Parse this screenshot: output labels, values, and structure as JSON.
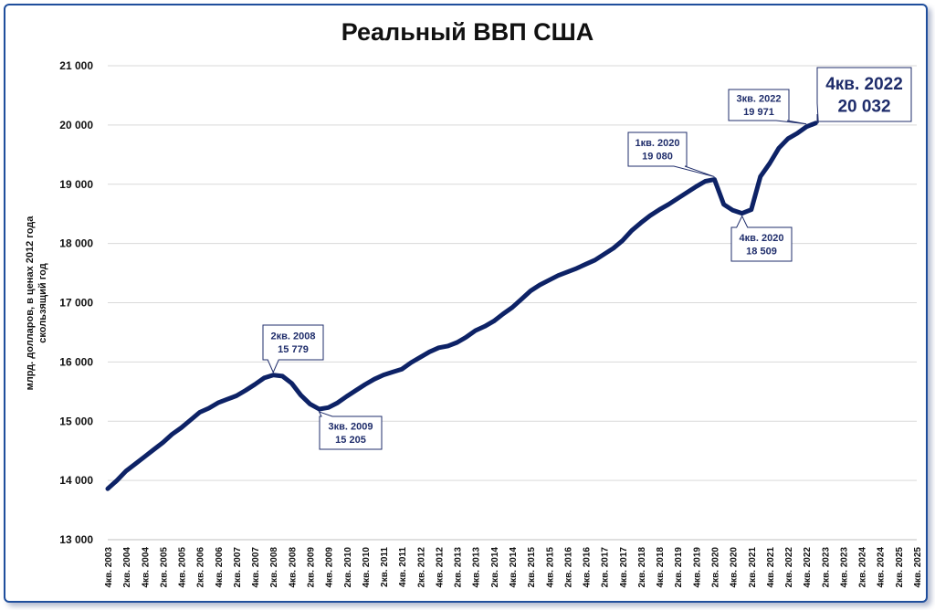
{
  "chart_data": {
    "type": "line",
    "title": "Реальный ВВП США",
    "ylabel_line1": "млрд. долларов, в ценах 2012 года",
    "ylabel_line2": "скользящий год",
    "ylim": [
      13000,
      21000
    ],
    "y_ticks": [
      "13 000",
      "14 000",
      "15 000",
      "16 000",
      "17 000",
      "18 000",
      "19 000",
      "20 000",
      "21 000"
    ],
    "y_tick_values": [
      13000,
      14000,
      15000,
      16000,
      17000,
      18000,
      19000,
      20000,
      21000
    ],
    "grid": true,
    "line_color": "#0d2266",
    "x_tick_labels": [
      "4кв. 2003",
      "2кв. 2004",
      "4кв. 2004",
      "2кв. 2005",
      "4кв. 2005",
      "2кв. 2006",
      "4кв. 2006",
      "2кв. 2007",
      "4кв. 2007",
      "2кв. 2008",
      "4кв. 2008",
      "2кв. 2009",
      "4кв. 2009",
      "2кв. 2010",
      "4кв. 2010",
      "2кв. 2011",
      "4кв. 2011",
      "2кв. 2012",
      "4кв. 2012",
      "2кв. 2013",
      "4кв. 2013",
      "2кв. 2014",
      "4кв. 2014",
      "2кв. 2015",
      "4кв. 2015",
      "2кв. 2016",
      "4кв. 2016",
      "2кв. 2017",
      "4кв. 2017",
      "2кв. 2018",
      "4кв. 2018",
      "2кв. 2019",
      "4кв. 2019",
      "2кв. 2020",
      "4кв. 2020",
      "2кв. 2021",
      "4кв. 2021",
      "2кв. 2022",
      "4кв. 2022",
      "2кв. 2023",
      "4кв. 2023",
      "2кв. 2024",
      "4кв. 2024",
      "2кв. 2025",
      "4кв. 2025"
    ],
    "series": [
      {
        "values": [
          13860,
          14000,
          14160,
          14280,
          14400,
          14520,
          14640,
          14780,
          14890,
          15020,
          15150,
          15220,
          15310,
          15370,
          15430,
          15520,
          15620,
          15730,
          15779,
          15760,
          15640,
          15440,
          15290,
          15205,
          15230,
          15310,
          15420,
          15520,
          15620,
          15710,
          15780,
          15830,
          15880,
          15990,
          16080,
          16170,
          16240,
          16270,
          16330,
          16420,
          16530,
          16600,
          16690,
          16810,
          16920,
          17060,
          17200,
          17300,
          17380,
          17460,
          17520,
          17580,
          17650,
          17720,
          17820,
          17920,
          18050,
          18220,
          18350,
          18470,
          18570,
          18660,
          18760,
          18860,
          18960,
          19050,
          19080,
          18660,
          18560,
          18509,
          18570,
          19130,
          19350,
          19610,
          19770,
          19860,
          19971,
          20032
        ]
      }
    ],
    "annotations": [
      {
        "period": "2кв. 2008",
        "value": "15 779",
        "index": 18
      },
      {
        "period": "3кв. 2009",
        "value": "15 205",
        "index": 23
      },
      {
        "period": "1кв. 2020",
        "value": "19 080",
        "index": 66
      },
      {
        "period": "4кв. 2020",
        "value": "18 509",
        "index": 69
      },
      {
        "period": "3кв. 2022",
        "value": "19 971",
        "index": 76
      },
      {
        "period": "4кв. 2022",
        "value": "20 032",
        "index": 77
      }
    ]
  }
}
